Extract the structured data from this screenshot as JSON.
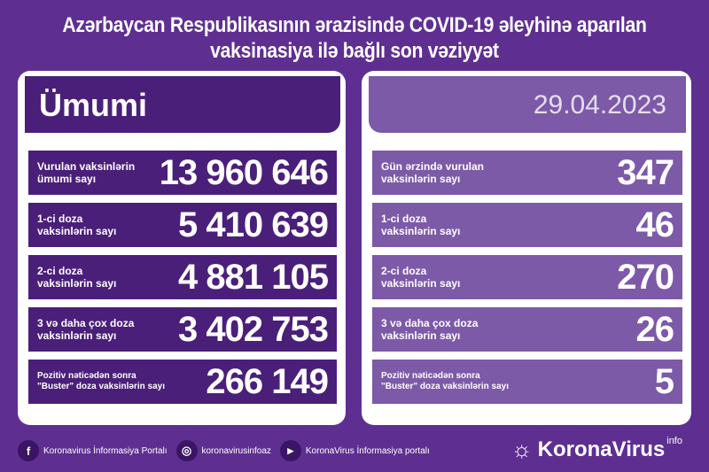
{
  "title": "Azərbaycan Respublikasının ərazisində COVID-19 əleyhinə aparılan\nvaksinasiya ilə bağlı son vəziyyət",
  "left": {
    "header": "Ümumi",
    "rows": [
      {
        "label": "Vurulan vaksinlərin\nümumi sayı",
        "value": "13 960 646"
      },
      {
        "label": "1-ci doza\nvaksinlərin sayı",
        "value": "5 410 639"
      },
      {
        "label": "2-ci doza\nvaksinlərin sayı",
        "value": "4 881 105"
      },
      {
        "label": "3 və daha çox doza\nvaksinlərin sayı",
        "value": "3 402 753"
      },
      {
        "label": "Pozitiv nəticədən sonra\n\"Buster\" doza vaksinlərin sayı",
        "value": "266 149"
      }
    ]
  },
  "right": {
    "header": "29.04.2023",
    "rows": [
      {
        "label": "Gün ərzində vurulan\nvaksinlərin sayı",
        "value": "347"
      },
      {
        "label": "1-ci doza\nvaksinlərin sayı",
        "value": "46"
      },
      {
        "label": "2-ci doza\nvaksinlərin sayı",
        "value": "270"
      },
      {
        "label": "3 və daha çox doza\nvaksinlərin sayı",
        "value": "26"
      },
      {
        "label": "Pozitiv nəticədən sonra\n\"Buster\" doza vaksinlərin sayı",
        "value": "5"
      }
    ]
  },
  "footer": {
    "facebook": "Koronavirus İnformasiya Portalı",
    "instagram": "koronavirusinfoaz",
    "youtube": "KoronaVirus İnformasiya portalı",
    "brand": "KoronaVirus",
    "brand_sup": "info"
  },
  "colors": {
    "background": "#5e2f91",
    "dark_row": "#4a1f79",
    "light_row": "#7c5aa8"
  }
}
